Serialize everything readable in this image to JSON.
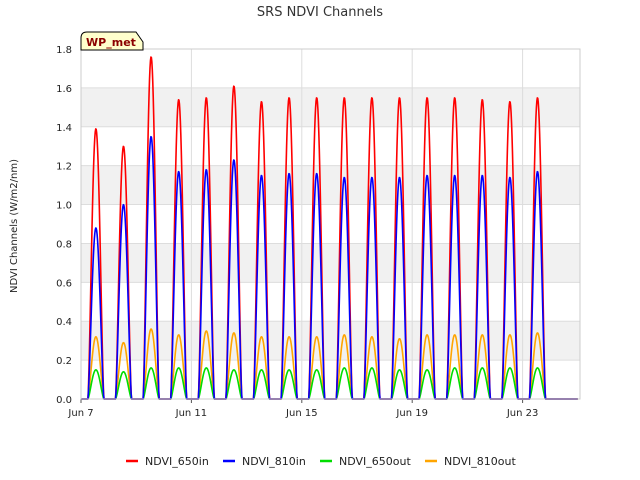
{
  "chart_data": {
    "type": "line",
    "title": "SRS NDVI Channels",
    "ylabel": "NDVI Channels (W/m2/nm)",
    "xlabel": "",
    "badge": "WP_met",
    "x_range": [
      "2024-06-07",
      "2024-06-25"
    ],
    "x_ticks": [
      "Jun 7",
      "Jun 11",
      "Jun 15",
      "Jun 19",
      "Jun 23"
    ],
    "ylim": [
      0,
      1.8
    ],
    "y_ticks": [
      "0.0",
      "0.2",
      "0.4",
      "0.6",
      "0.8",
      "1.0",
      "1.2",
      "1.4",
      "1.6",
      "1.8"
    ],
    "grid": true,
    "legend_position": "bottom",
    "days": [
      "Jun 7",
      "Jun 8",
      "Jun 9",
      "Jun 10",
      "Jun 11",
      "Jun 12",
      "Jun 13",
      "Jun 14",
      "Jun 15",
      "Jun 16",
      "Jun 17",
      "Jun 18",
      "Jun 19",
      "Jun 20",
      "Jun 21",
      "Jun 22",
      "Jun 23",
      "Jun 24"
    ],
    "series": [
      {
        "name": "NDVI_650in",
        "color": "#ff0000",
        "daily_peak": [
          1.39,
          1.3,
          1.76,
          1.54,
          1.55,
          1.61,
          1.53,
          1.55,
          1.55,
          1.55,
          1.55,
          1.55,
          1.55,
          1.55,
          1.54,
          1.53,
          1.55,
          0
        ]
      },
      {
        "name": "NDVI_810in",
        "color": "#0000ff",
        "daily_peak": [
          0.88,
          1.0,
          1.35,
          1.17,
          1.18,
          1.23,
          1.15,
          1.16,
          1.16,
          1.14,
          1.14,
          1.14,
          1.15,
          1.15,
          1.15,
          1.14,
          1.17,
          0
        ]
      },
      {
        "name": "NDVI_650out",
        "color": "#00dd00",
        "daily_peak": [
          0.15,
          0.14,
          0.16,
          0.16,
          0.16,
          0.15,
          0.15,
          0.15,
          0.15,
          0.16,
          0.16,
          0.15,
          0.15,
          0.16,
          0.16,
          0.16,
          0.16,
          0
        ]
      },
      {
        "name": "NDVI_810out",
        "color": "#ffa500",
        "daily_peak": [
          0.32,
          0.29,
          0.36,
          0.33,
          0.35,
          0.34,
          0.32,
          0.32,
          0.32,
          0.33,
          0.32,
          0.31,
          0.33,
          0.33,
          0.33,
          0.33,
          0.34,
          0
        ]
      }
    ]
  }
}
